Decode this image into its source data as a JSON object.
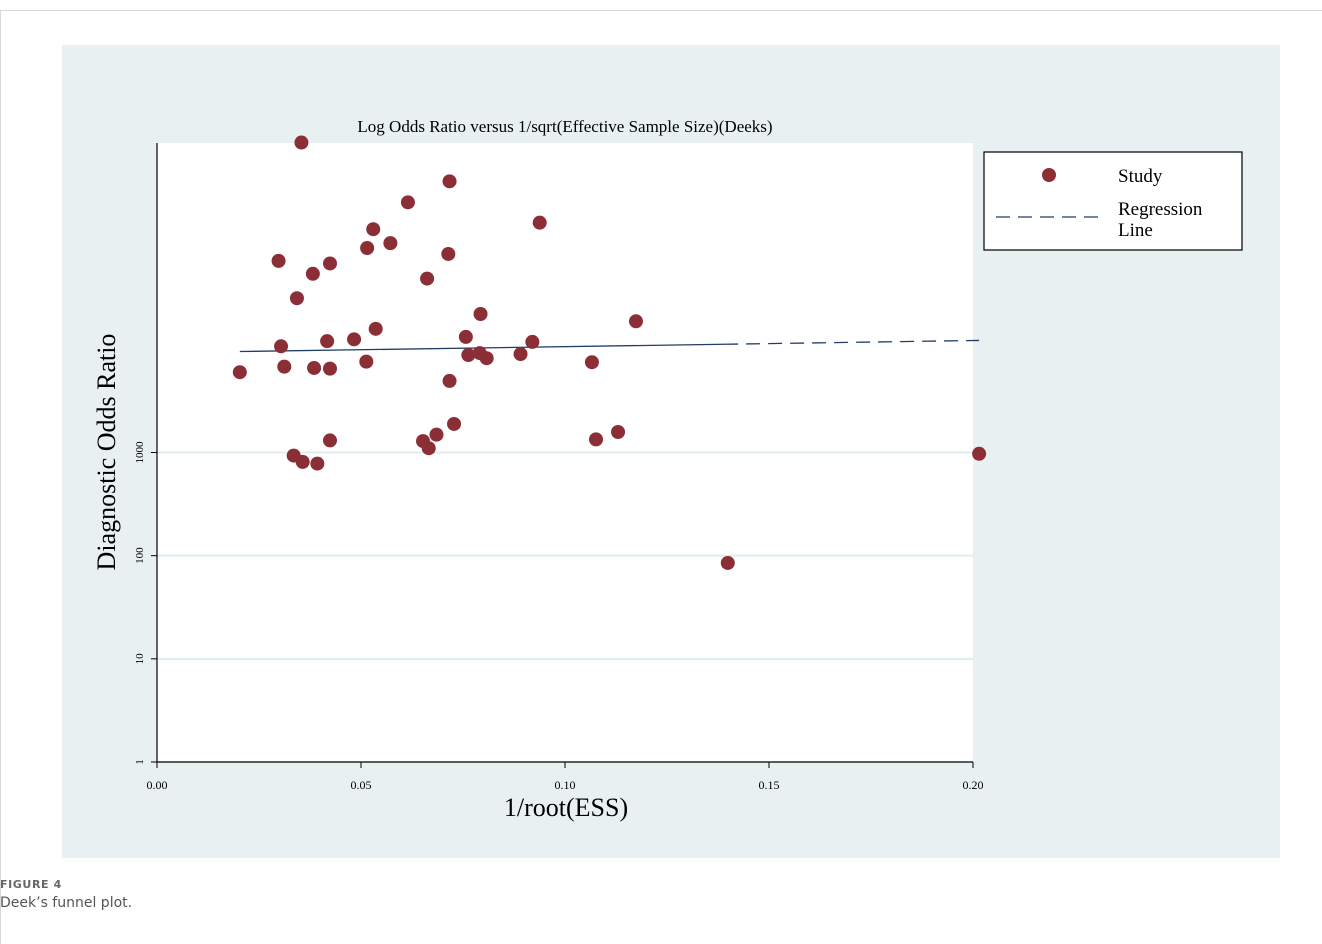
{
  "chart_data": {
    "type": "scatter",
    "title": "Log Odds Ratio versus 1/sqrt(Effective Sample Size)(Deeks)",
    "xlabel": "1/root(ESS)",
    "ylabel": "Diagnostic Odds Ratio",
    "xlim": [
      0,
      0.2
    ],
    "ylim": [
      1,
      1000000
    ],
    "y_scale": "log",
    "grid": "horizontal",
    "x_ticks": [
      0,
      0.05,
      0.1,
      0.15,
      0.2
    ],
    "x_tick_labels": [
      "0.00",
      "0.05",
      "0.10",
      "0.15",
      "0.20"
    ],
    "y_ticks": [
      1,
      10,
      100,
      1000
    ],
    "y_tick_labels": [
      "1",
      "10",
      "100",
      "1000"
    ],
    "legend_position": "top-right",
    "legend": [
      "Study",
      "Regression Line"
    ],
    "series": [
      {
        "name": "Study",
        "points": [
          [
            0.0354,
            1010000
          ],
          [
            0.0717,
            425000
          ],
          [
            0.0615,
            266000
          ],
          [
            0.0938,
            169000
          ],
          [
            0.053,
            146000
          ],
          [
            0.0572,
            107000
          ],
          [
            0.0515,
            96000
          ],
          [
            0.0714,
            84000
          ],
          [
            0.0298,
            72000
          ],
          [
            0.0424,
            68000
          ],
          [
            0.0382,
            54000
          ],
          [
            0.0662,
            48500
          ],
          [
            0.0343,
            31300
          ],
          [
            0.0793,
            22000
          ],
          [
            0.1174,
            18700
          ],
          [
            0.0536,
            15800
          ],
          [
            0.0757,
            13200
          ],
          [
            0.0417,
            12000
          ],
          [
            0.0483,
            12500
          ],
          [
            0.092,
            11800
          ],
          [
            0.0304,
            10700
          ],
          [
            0.0763,
            8800
          ],
          [
            0.0791,
            9200
          ],
          [
            0.0808,
            8200
          ],
          [
            0.0891,
            9000
          ],
          [
            0.0513,
            7600
          ],
          [
            0.0312,
            6800
          ],
          [
            0.1066,
            7500
          ],
          [
            0.0385,
            6600
          ],
          [
            0.0424,
            6500
          ],
          [
            0.0203,
            6000
          ],
          [
            0.0717,
            4940
          ],
          [
            0.0728,
            1890
          ],
          [
            0.113,
            1580
          ],
          [
            0.0685,
            1490
          ],
          [
            0.1076,
            1340
          ],
          [
            0.0424,
            1310
          ],
          [
            0.0652,
            1290
          ],
          [
            0.0666,
            1100
          ],
          [
            0.0335,
            933
          ],
          [
            0.0357,
            811
          ],
          [
            0.0393,
            781
          ],
          [
            0.2015,
            972
          ],
          [
            0.1399,
            85
          ]
        ]
      },
      {
        "name": "Regression Line",
        "x": [
          0.0203,
          0.2015
        ],
        "y": [
          9520,
          12200
        ],
        "style": "dashed"
      }
    ],
    "colors": {
      "points": "#8b2e36",
      "line": "#1f3e66",
      "background": "#e8f0f2",
      "grid": "#e1ecef"
    }
  },
  "caption": {
    "label": "FIGURE 4",
    "text": "Deek’s funnel plot."
  }
}
